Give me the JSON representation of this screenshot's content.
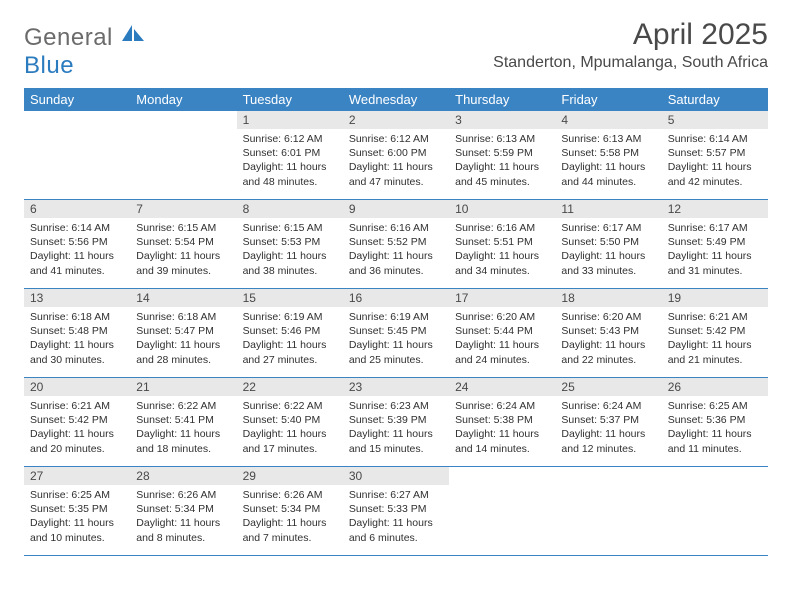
{
  "logo": {
    "text1": "General",
    "text2": "Blue"
  },
  "title": "April 2025",
  "location": "Standerton, Mpumalanga, South Africa",
  "colors": {
    "header_bg": "#3b84c4",
    "header_text": "#ffffff",
    "daynum_bg": "#e8e8e8",
    "text": "#494949",
    "row_border": "#3b84c4"
  },
  "weekdays": [
    "Sunday",
    "Monday",
    "Tuesday",
    "Wednesday",
    "Thursday",
    "Friday",
    "Saturday"
  ],
  "weeks": [
    [
      {
        "n": "",
        "sr": "",
        "ss": "",
        "dl": ""
      },
      {
        "n": "",
        "sr": "",
        "ss": "",
        "dl": ""
      },
      {
        "n": "1",
        "sr": "Sunrise: 6:12 AM",
        "ss": "Sunset: 6:01 PM",
        "dl": "Daylight: 11 hours and 48 minutes."
      },
      {
        "n": "2",
        "sr": "Sunrise: 6:12 AM",
        "ss": "Sunset: 6:00 PM",
        "dl": "Daylight: 11 hours and 47 minutes."
      },
      {
        "n": "3",
        "sr": "Sunrise: 6:13 AM",
        "ss": "Sunset: 5:59 PM",
        "dl": "Daylight: 11 hours and 45 minutes."
      },
      {
        "n": "4",
        "sr": "Sunrise: 6:13 AM",
        "ss": "Sunset: 5:58 PM",
        "dl": "Daylight: 11 hours and 44 minutes."
      },
      {
        "n": "5",
        "sr": "Sunrise: 6:14 AM",
        "ss": "Sunset: 5:57 PM",
        "dl": "Daylight: 11 hours and 42 minutes."
      }
    ],
    [
      {
        "n": "6",
        "sr": "Sunrise: 6:14 AM",
        "ss": "Sunset: 5:56 PM",
        "dl": "Daylight: 11 hours and 41 minutes."
      },
      {
        "n": "7",
        "sr": "Sunrise: 6:15 AM",
        "ss": "Sunset: 5:54 PM",
        "dl": "Daylight: 11 hours and 39 minutes."
      },
      {
        "n": "8",
        "sr": "Sunrise: 6:15 AM",
        "ss": "Sunset: 5:53 PM",
        "dl": "Daylight: 11 hours and 38 minutes."
      },
      {
        "n": "9",
        "sr": "Sunrise: 6:16 AM",
        "ss": "Sunset: 5:52 PM",
        "dl": "Daylight: 11 hours and 36 minutes."
      },
      {
        "n": "10",
        "sr": "Sunrise: 6:16 AM",
        "ss": "Sunset: 5:51 PM",
        "dl": "Daylight: 11 hours and 34 minutes."
      },
      {
        "n": "11",
        "sr": "Sunrise: 6:17 AM",
        "ss": "Sunset: 5:50 PM",
        "dl": "Daylight: 11 hours and 33 minutes."
      },
      {
        "n": "12",
        "sr": "Sunrise: 6:17 AM",
        "ss": "Sunset: 5:49 PM",
        "dl": "Daylight: 11 hours and 31 minutes."
      }
    ],
    [
      {
        "n": "13",
        "sr": "Sunrise: 6:18 AM",
        "ss": "Sunset: 5:48 PM",
        "dl": "Daylight: 11 hours and 30 minutes."
      },
      {
        "n": "14",
        "sr": "Sunrise: 6:18 AM",
        "ss": "Sunset: 5:47 PM",
        "dl": "Daylight: 11 hours and 28 minutes."
      },
      {
        "n": "15",
        "sr": "Sunrise: 6:19 AM",
        "ss": "Sunset: 5:46 PM",
        "dl": "Daylight: 11 hours and 27 minutes."
      },
      {
        "n": "16",
        "sr": "Sunrise: 6:19 AM",
        "ss": "Sunset: 5:45 PM",
        "dl": "Daylight: 11 hours and 25 minutes."
      },
      {
        "n": "17",
        "sr": "Sunrise: 6:20 AM",
        "ss": "Sunset: 5:44 PM",
        "dl": "Daylight: 11 hours and 24 minutes."
      },
      {
        "n": "18",
        "sr": "Sunrise: 6:20 AM",
        "ss": "Sunset: 5:43 PM",
        "dl": "Daylight: 11 hours and 22 minutes."
      },
      {
        "n": "19",
        "sr": "Sunrise: 6:21 AM",
        "ss": "Sunset: 5:42 PM",
        "dl": "Daylight: 11 hours and 21 minutes."
      }
    ],
    [
      {
        "n": "20",
        "sr": "Sunrise: 6:21 AM",
        "ss": "Sunset: 5:42 PM",
        "dl": "Daylight: 11 hours and 20 minutes."
      },
      {
        "n": "21",
        "sr": "Sunrise: 6:22 AM",
        "ss": "Sunset: 5:41 PM",
        "dl": "Daylight: 11 hours and 18 minutes."
      },
      {
        "n": "22",
        "sr": "Sunrise: 6:22 AM",
        "ss": "Sunset: 5:40 PM",
        "dl": "Daylight: 11 hours and 17 minutes."
      },
      {
        "n": "23",
        "sr": "Sunrise: 6:23 AM",
        "ss": "Sunset: 5:39 PM",
        "dl": "Daylight: 11 hours and 15 minutes."
      },
      {
        "n": "24",
        "sr": "Sunrise: 6:24 AM",
        "ss": "Sunset: 5:38 PM",
        "dl": "Daylight: 11 hours and 14 minutes."
      },
      {
        "n": "25",
        "sr": "Sunrise: 6:24 AM",
        "ss": "Sunset: 5:37 PM",
        "dl": "Daylight: 11 hours and 12 minutes."
      },
      {
        "n": "26",
        "sr": "Sunrise: 6:25 AM",
        "ss": "Sunset: 5:36 PM",
        "dl": "Daylight: 11 hours and 11 minutes."
      }
    ],
    [
      {
        "n": "27",
        "sr": "Sunrise: 6:25 AM",
        "ss": "Sunset: 5:35 PM",
        "dl": "Daylight: 11 hours and 10 minutes."
      },
      {
        "n": "28",
        "sr": "Sunrise: 6:26 AM",
        "ss": "Sunset: 5:34 PM",
        "dl": "Daylight: 11 hours and 8 minutes."
      },
      {
        "n": "29",
        "sr": "Sunrise: 6:26 AM",
        "ss": "Sunset: 5:34 PM",
        "dl": "Daylight: 11 hours and 7 minutes."
      },
      {
        "n": "30",
        "sr": "Sunrise: 6:27 AM",
        "ss": "Sunset: 5:33 PM",
        "dl": "Daylight: 11 hours and 6 minutes."
      },
      {
        "n": "",
        "sr": "",
        "ss": "",
        "dl": ""
      },
      {
        "n": "",
        "sr": "",
        "ss": "",
        "dl": ""
      },
      {
        "n": "",
        "sr": "",
        "ss": "",
        "dl": ""
      }
    ]
  ]
}
